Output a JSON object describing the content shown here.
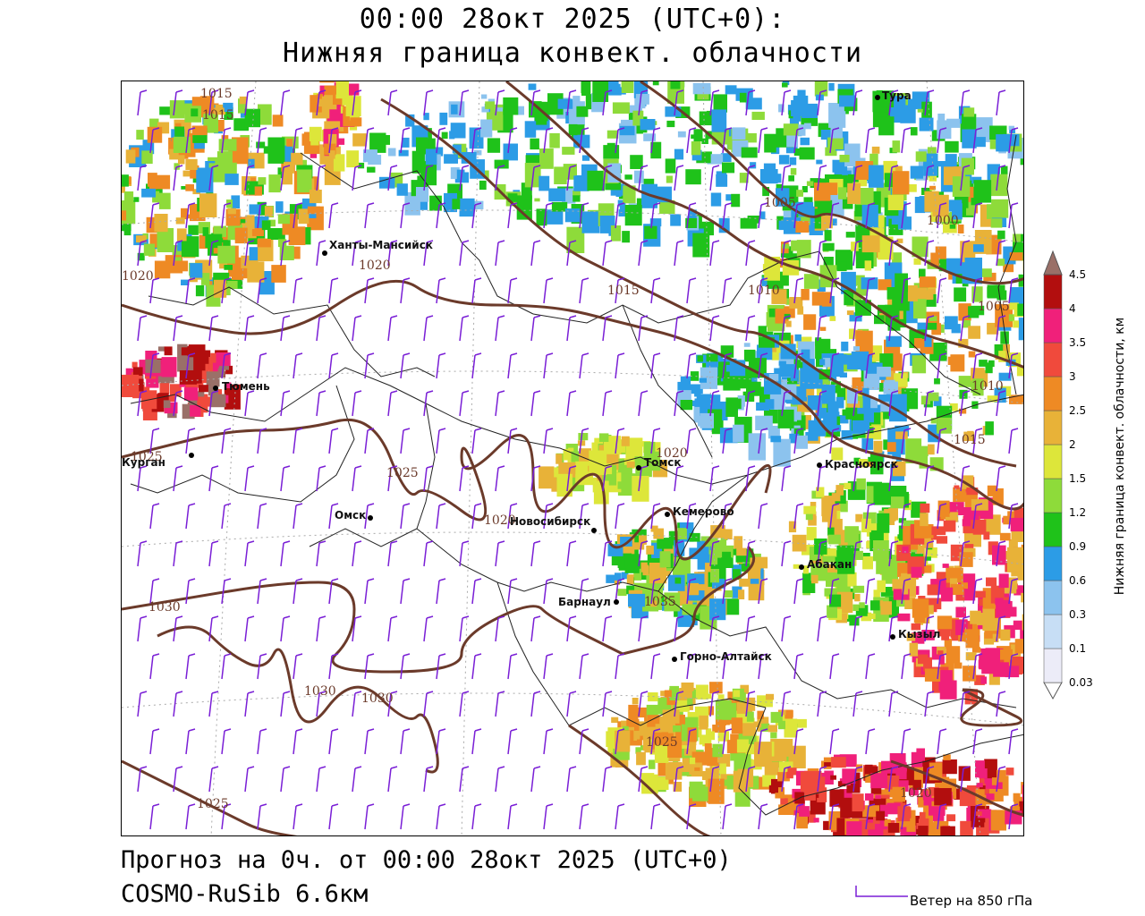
{
  "title": {
    "line1": "00:00 28окт 2025 (UTC+0):",
    "line2": "Нижняя граница конвект. облачности"
  },
  "colorbar": {
    "label": "Нижняя граница конвект. облачности, км",
    "levels": [
      {
        "value": "0.03",
        "color": "#ececf8"
      },
      {
        "value": "0.1",
        "color": "#c7def5"
      },
      {
        "value": "0.3",
        "color": "#8cc3ee"
      },
      {
        "value": "0.6",
        "color": "#2c9ce6"
      },
      {
        "value": "0.9",
        "color": "#1fc21a"
      },
      {
        "value": "1.2",
        "color": "#8edb3a"
      },
      {
        "value": "1.5",
        "color": "#dde63a"
      },
      {
        "value": "2",
        "color": "#e8b238"
      },
      {
        "value": "2.5",
        "color": "#ee8a24"
      },
      {
        "value": "3",
        "color": "#f04a3c"
      },
      {
        "value": "3.5",
        "color": "#f0207a"
      },
      {
        "value": "4",
        "color": "#b20e0e"
      },
      {
        "value": "4.5",
        "color": "#9a7068"
      }
    ],
    "top_color": "#9a7068",
    "bottom_color": "#ffffff"
  },
  "cities": [
    {
      "name": "Тура"
    },
    {
      "name": "Ханты-Мансийск"
    },
    {
      "name": "Тюмень"
    },
    {
      "name": "Курган"
    },
    {
      "name": "Омск"
    },
    {
      "name": "Новосибирск"
    },
    {
      "name": "Томск"
    },
    {
      "name": "Кемерово"
    },
    {
      "name": "Красноярск"
    },
    {
      "name": "Абакан"
    },
    {
      "name": "Барнаул"
    },
    {
      "name": "Горно-Алтайск"
    },
    {
      "name": "Кызыл"
    }
  ],
  "isobar_labels": [
    "1015",
    "1015",
    "1020",
    "1020",
    "1015",
    "1005",
    "1010",
    "1000",
    "1005",
    "1010",
    "1015",
    "1020",
    "1025",
    "1025",
    "1020",
    "1030",
    "1035",
    "1030",
    "1030",
    "1025",
    "1025",
    "1020"
  ],
  "bottom": {
    "forecast": "Прогноз на 0ч. от 00:00 28окт 2025 (UTC+0)",
    "model": "COSMO-RuSib 6.6км"
  },
  "wind_legend": {
    "label": "Ветер на 850 гПа",
    "color": "#7a1fd6"
  },
  "colors": {
    "isobar": "#6b3a2a",
    "border": "#222222",
    "graticule": "#999999",
    "barb": "#7a1fd6"
  }
}
